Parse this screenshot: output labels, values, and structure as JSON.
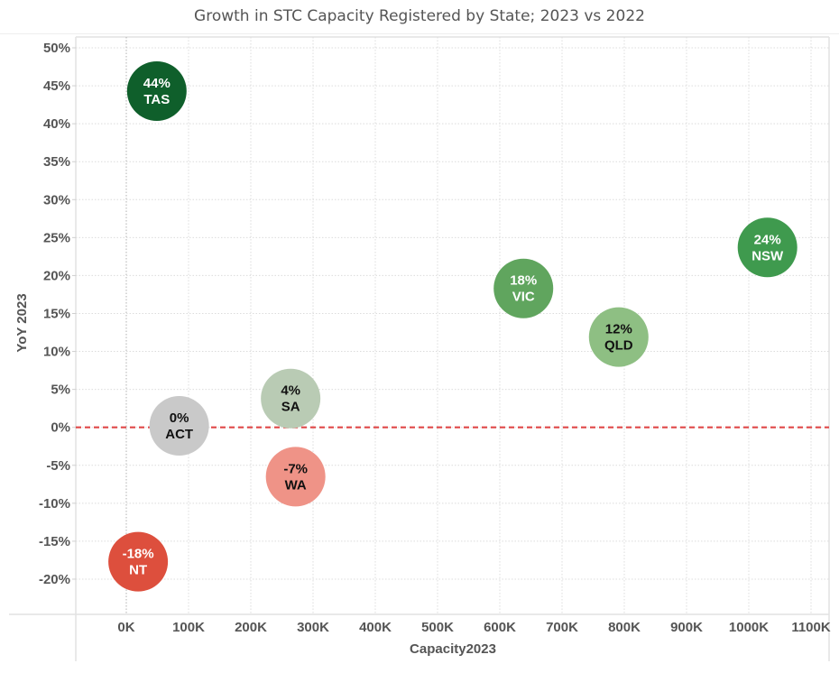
{
  "chart_data": {
    "type": "scatter",
    "title": "Growth in STC Capacity Registered by State; 2023 vs 2022",
    "xlabel": "Capacity2023",
    "ylabel": "YoY 2023",
    "xlim": [
      -80000,
      1130000
    ],
    "ylim": [
      -25,
      51.5
    ],
    "x_ticks": [
      0,
      100000,
      200000,
      300000,
      400000,
      500000,
      600000,
      700000,
      800000,
      900000,
      1000000,
      1100000
    ],
    "x_tick_labels": [
      "0K",
      "100K",
      "200K",
      "300K",
      "400K",
      "500K",
      "600K",
      "700K",
      "800K",
      "900K",
      "1000K",
      "1100K"
    ],
    "y_ticks": [
      50,
      45,
      40,
      35,
      30,
      25,
      20,
      15,
      10,
      5,
      0,
      -5,
      -10,
      -15,
      -20
    ],
    "y_tick_labels": [
      "50%",
      "45%",
      "40%",
      "35%",
      "30%",
      "25%",
      "20%",
      "15%",
      "10%",
      "5%",
      "0%",
      "-5%",
      "-10%",
      "-15%",
      "-20%"
    ],
    "grid": true,
    "reference_line": {
      "y": 0,
      "color": "#e04848",
      "style": "dashed"
    },
    "points": [
      {
        "state": "TAS",
        "label": "44%",
        "x": 49000,
        "y": 44.3,
        "color": "#0f5f2b",
        "text_color": "#ffffff"
      },
      {
        "state": "NSW",
        "label": "24%",
        "x": 1030000,
        "y": 23.7,
        "color": "#3f9a4e",
        "text_color": "#ffffff"
      },
      {
        "state": "VIC",
        "label": "18%",
        "x": 638000,
        "y": 18.3,
        "color": "#60a55e",
        "text_color": "#ffffff"
      },
      {
        "state": "QLD",
        "label": "12%",
        "x": 791000,
        "y": 11.9,
        "color": "#8ebf83",
        "text_color": "#111111"
      },
      {
        "state": "SA",
        "label": "4%",
        "x": 264000,
        "y": 3.8,
        "color": "#b9cbb4",
        "text_color": "#111111"
      },
      {
        "state": "ACT",
        "label": "0%",
        "x": 85000,
        "y": 0.2,
        "color": "#c9c9c9",
        "text_color": "#111111"
      },
      {
        "state": "WA",
        "label": "-7%",
        "x": 272000,
        "y": -6.5,
        "color": "#ef9387",
        "text_color": "#111111"
      },
      {
        "state": "NT",
        "label": "-18%",
        "x": 19000,
        "y": -17.7,
        "color": "#dd4f3d",
        "text_color": "#ffffff"
      }
    ]
  }
}
